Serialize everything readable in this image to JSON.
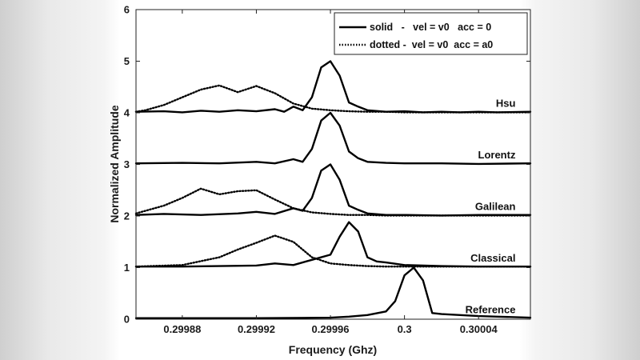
{
  "chart_data": {
    "type": "line",
    "title": "",
    "xlabel": "Frequency (Ghz)",
    "ylabel": "Normalized Amplitude",
    "xlim": [
      0.299855,
      0.300068
    ],
    "ylim": [
      0,
      6
    ],
    "xticks": [
      0.29988,
      0.29992,
      0.29996,
      0.3,
      0.30004
    ],
    "xtick_labels": [
      "0.29988",
      "0.29992",
      "0.29996",
      "0.3",
      "0.30004"
    ],
    "yticks": [
      0,
      1,
      2,
      3,
      4,
      5,
      6
    ],
    "ytick_labels": [
      "0",
      "1",
      "2",
      "3",
      "4",
      "5",
      "6"
    ],
    "grid": false,
    "legend": {
      "placement": "top-right",
      "entries": [
        {
          "style": "solid",
          "label": "solid   -   vel = v0   acc = 0"
        },
        {
          "style": "dotted",
          "label": "dotted -  vel = v0  acc = a0"
        }
      ]
    },
    "series_labels": [
      {
        "text": "Hsu",
        "x": 0.30006,
        "y": 4.12
      },
      {
        "text": "Lorentz",
        "x": 0.30006,
        "y": 3.12
      },
      {
        "text": "Galilean",
        "x": 0.30006,
        "y": 2.12
      },
      {
        "text": "Classical",
        "x": 0.30006,
        "y": 1.12
      },
      {
        "text": "Reference",
        "x": 0.30006,
        "y": 0.12
      }
    ],
    "series": [
      {
        "style": "solid",
        "x": [
          0.299855,
          0.29987,
          0.29988,
          0.29989,
          0.2999,
          0.29991,
          0.29992,
          0.29993,
          0.299935,
          0.29994,
          0.299945,
          0.29995,
          0.299955,
          0.29996,
          0.299965,
          0.29997,
          0.299975,
          0.29998,
          0.29999,
          0.3,
          0.30001,
          0.30002,
          0.30003,
          0.30004,
          0.30005,
          0.300068
        ],
        "y": [
          4.02,
          4.03,
          4.01,
          4.04,
          4.02,
          4.05,
          4.03,
          4.07,
          4.02,
          4.12,
          4.05,
          4.3,
          4.88,
          5.0,
          4.72,
          4.2,
          4.12,
          4.05,
          4.02,
          4.03,
          4.01,
          4.02,
          4.01,
          4.02,
          4.01,
          4.02
        ]
      },
      {
        "style": "dotted",
        "x": [
          0.299855,
          0.29986,
          0.29987,
          0.29988,
          0.29989,
          0.2999,
          0.29991,
          0.29992,
          0.29993,
          0.29994,
          0.29995,
          0.29996,
          0.29997,
          0.29998,
          0.29999,
          0.3,
          0.30002,
          0.300068
        ],
        "y": [
          4.02,
          4.05,
          4.15,
          4.3,
          4.45,
          4.53,
          4.4,
          4.52,
          4.38,
          4.18,
          4.08,
          4.05,
          4.03,
          4.02,
          4.02,
          4.01,
          4.01,
          4.01
        ]
      },
      {
        "style": "solid",
        "x": [
          0.299855,
          0.29988,
          0.2999,
          0.29992,
          0.29993,
          0.29994,
          0.299945,
          0.29995,
          0.299955,
          0.29996,
          0.299965,
          0.29997,
          0.299975,
          0.29998,
          0.29999,
          0.3,
          0.30002,
          0.30004,
          0.300068
        ],
        "y": [
          3.02,
          3.03,
          3.02,
          3.05,
          3.02,
          3.1,
          3.05,
          3.3,
          3.85,
          4.0,
          3.75,
          3.25,
          3.12,
          3.05,
          3.03,
          3.02,
          3.02,
          3.01,
          3.02
        ]
      },
      {
        "style": "solid",
        "x": [
          0.299855,
          0.29987,
          0.29989,
          0.29991,
          0.29992,
          0.29993,
          0.29994,
          0.299945,
          0.29995,
          0.299955,
          0.29996,
          0.299965,
          0.29997,
          0.299975,
          0.29998,
          0.29999,
          0.3,
          0.30002,
          0.30004,
          0.300068
        ],
        "y": [
          2.02,
          2.04,
          2.02,
          2.05,
          2.08,
          2.04,
          2.15,
          2.1,
          2.35,
          2.88,
          3.0,
          2.7,
          2.2,
          2.12,
          2.05,
          2.02,
          2.02,
          2.01,
          2.02,
          2.02
        ]
      },
      {
        "style": "dotted",
        "x": [
          0.299855,
          0.29987,
          0.29988,
          0.29989,
          0.2999,
          0.29991,
          0.29992,
          0.29993,
          0.29994,
          0.29995,
          0.29996,
          0.29997,
          0.29998,
          0.29999,
          0.3,
          0.30002,
          0.300068
        ],
        "y": [
          2.05,
          2.2,
          2.35,
          2.53,
          2.42,
          2.48,
          2.5,
          2.32,
          2.15,
          2.07,
          2.04,
          2.02,
          2.02,
          2.01,
          2.01,
          2.01,
          2.01
        ]
      },
      {
        "style": "solid",
        "x": [
          0.299855,
          0.29988,
          0.2999,
          0.29992,
          0.29993,
          0.29994,
          0.29995,
          0.29996,
          0.299965,
          0.29997,
          0.299975,
          0.29998,
          0.299985,
          0.29999,
          0.3,
          0.30002,
          0.30004,
          0.300068
        ],
        "y": [
          1.02,
          1.02,
          1.03,
          1.04,
          1.08,
          1.05,
          1.15,
          1.25,
          1.6,
          1.88,
          1.7,
          1.2,
          1.12,
          1.1,
          1.05,
          1.03,
          1.02,
          1.02
        ]
      },
      {
        "style": "dotted",
        "x": [
          0.299855,
          0.29988,
          0.2999,
          0.29991,
          0.29992,
          0.29993,
          0.29994,
          0.29995,
          0.29996,
          0.29997,
          0.29998,
          0.29999,
          0.3,
          0.300068
        ],
        "y": [
          1.02,
          1.05,
          1.2,
          1.35,
          1.48,
          1.62,
          1.5,
          1.2,
          1.08,
          1.05,
          1.03,
          1.02,
          1.02,
          1.02
        ]
      },
      {
        "style": "solid",
        "x": [
          0.299855,
          0.29992,
          0.29996,
          0.29997,
          0.29998,
          0.29999,
          0.299995,
          0.3,
          0.300005,
          0.30001,
          0.300015,
          0.30002,
          0.30003,
          0.30004,
          0.30005,
          0.300068
        ],
        "y": [
          0.02,
          0.02,
          0.03,
          0.05,
          0.08,
          0.15,
          0.35,
          0.85,
          1.0,
          0.75,
          0.12,
          0.1,
          0.08,
          0.06,
          0.05,
          0.03
        ]
      }
    ]
  }
}
